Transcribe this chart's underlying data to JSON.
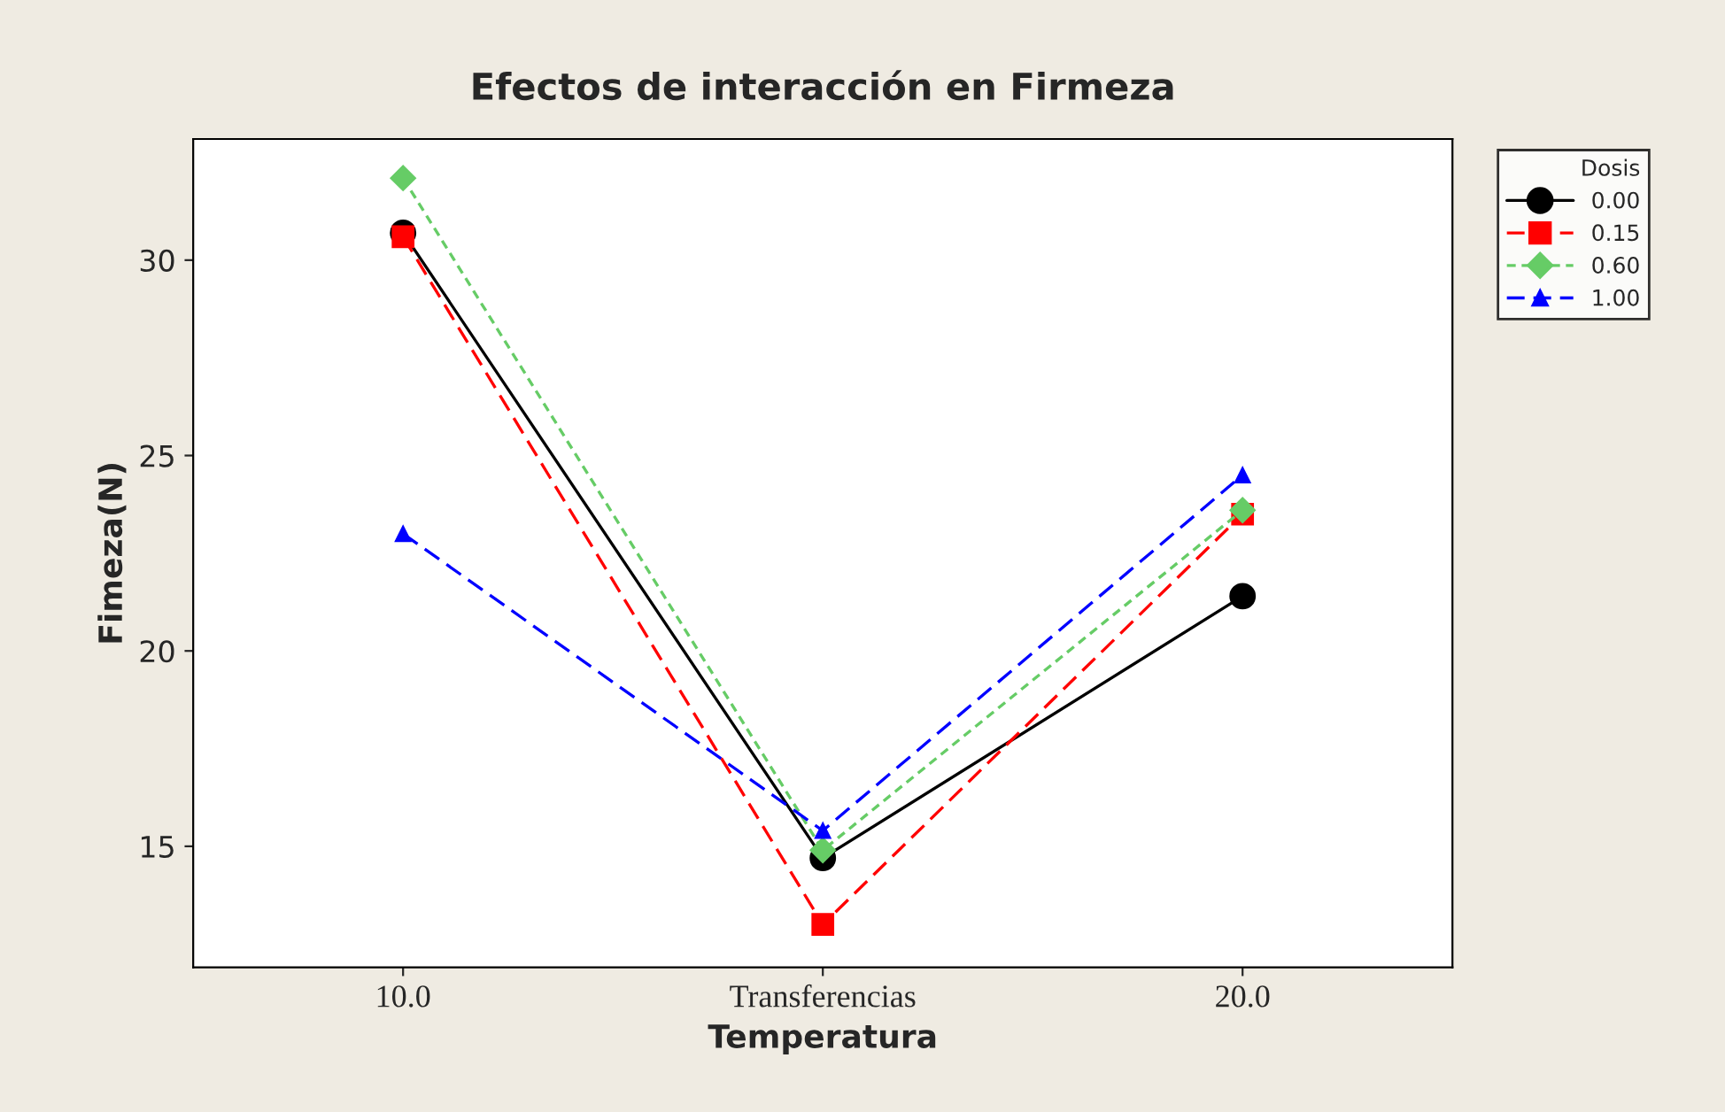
{
  "chart_data": {
    "type": "line",
    "title": "Efectos de interacción en Firmeza",
    "xlabel": "Temperatura",
    "ylabel": "Fimeza(N)",
    "legend_title": "Dosis",
    "categories": [
      "10.0",
      "Transferencias",
      "20.0"
    ],
    "series": [
      {
        "name": "0.00",
        "color": "#000000",
        "values": [
          30.7,
          14.7,
          21.4
        ],
        "marker": "circle",
        "line_style": "solid"
      },
      {
        "name": "0.15",
        "color": "#ff0000",
        "values": [
          30.6,
          13.0,
          23.5
        ],
        "marker": "square",
        "line_style": "dashed"
      },
      {
        "name": "0.60",
        "color": "#66cc66",
        "values": [
          32.1,
          14.9,
          23.6
        ],
        "marker": "diamond",
        "line_style": "dotted"
      },
      {
        "name": "1.00",
        "color": "#0000ff",
        "values": [
          23.0,
          15.4,
          24.5
        ],
        "marker": "triangle",
        "line_style": "dashed"
      }
    ],
    "ylim": [
      11.9,
      33.1
    ],
    "yticks": [
      15,
      20,
      25,
      30
    ],
    "grid": false,
    "legend": "top right"
  }
}
